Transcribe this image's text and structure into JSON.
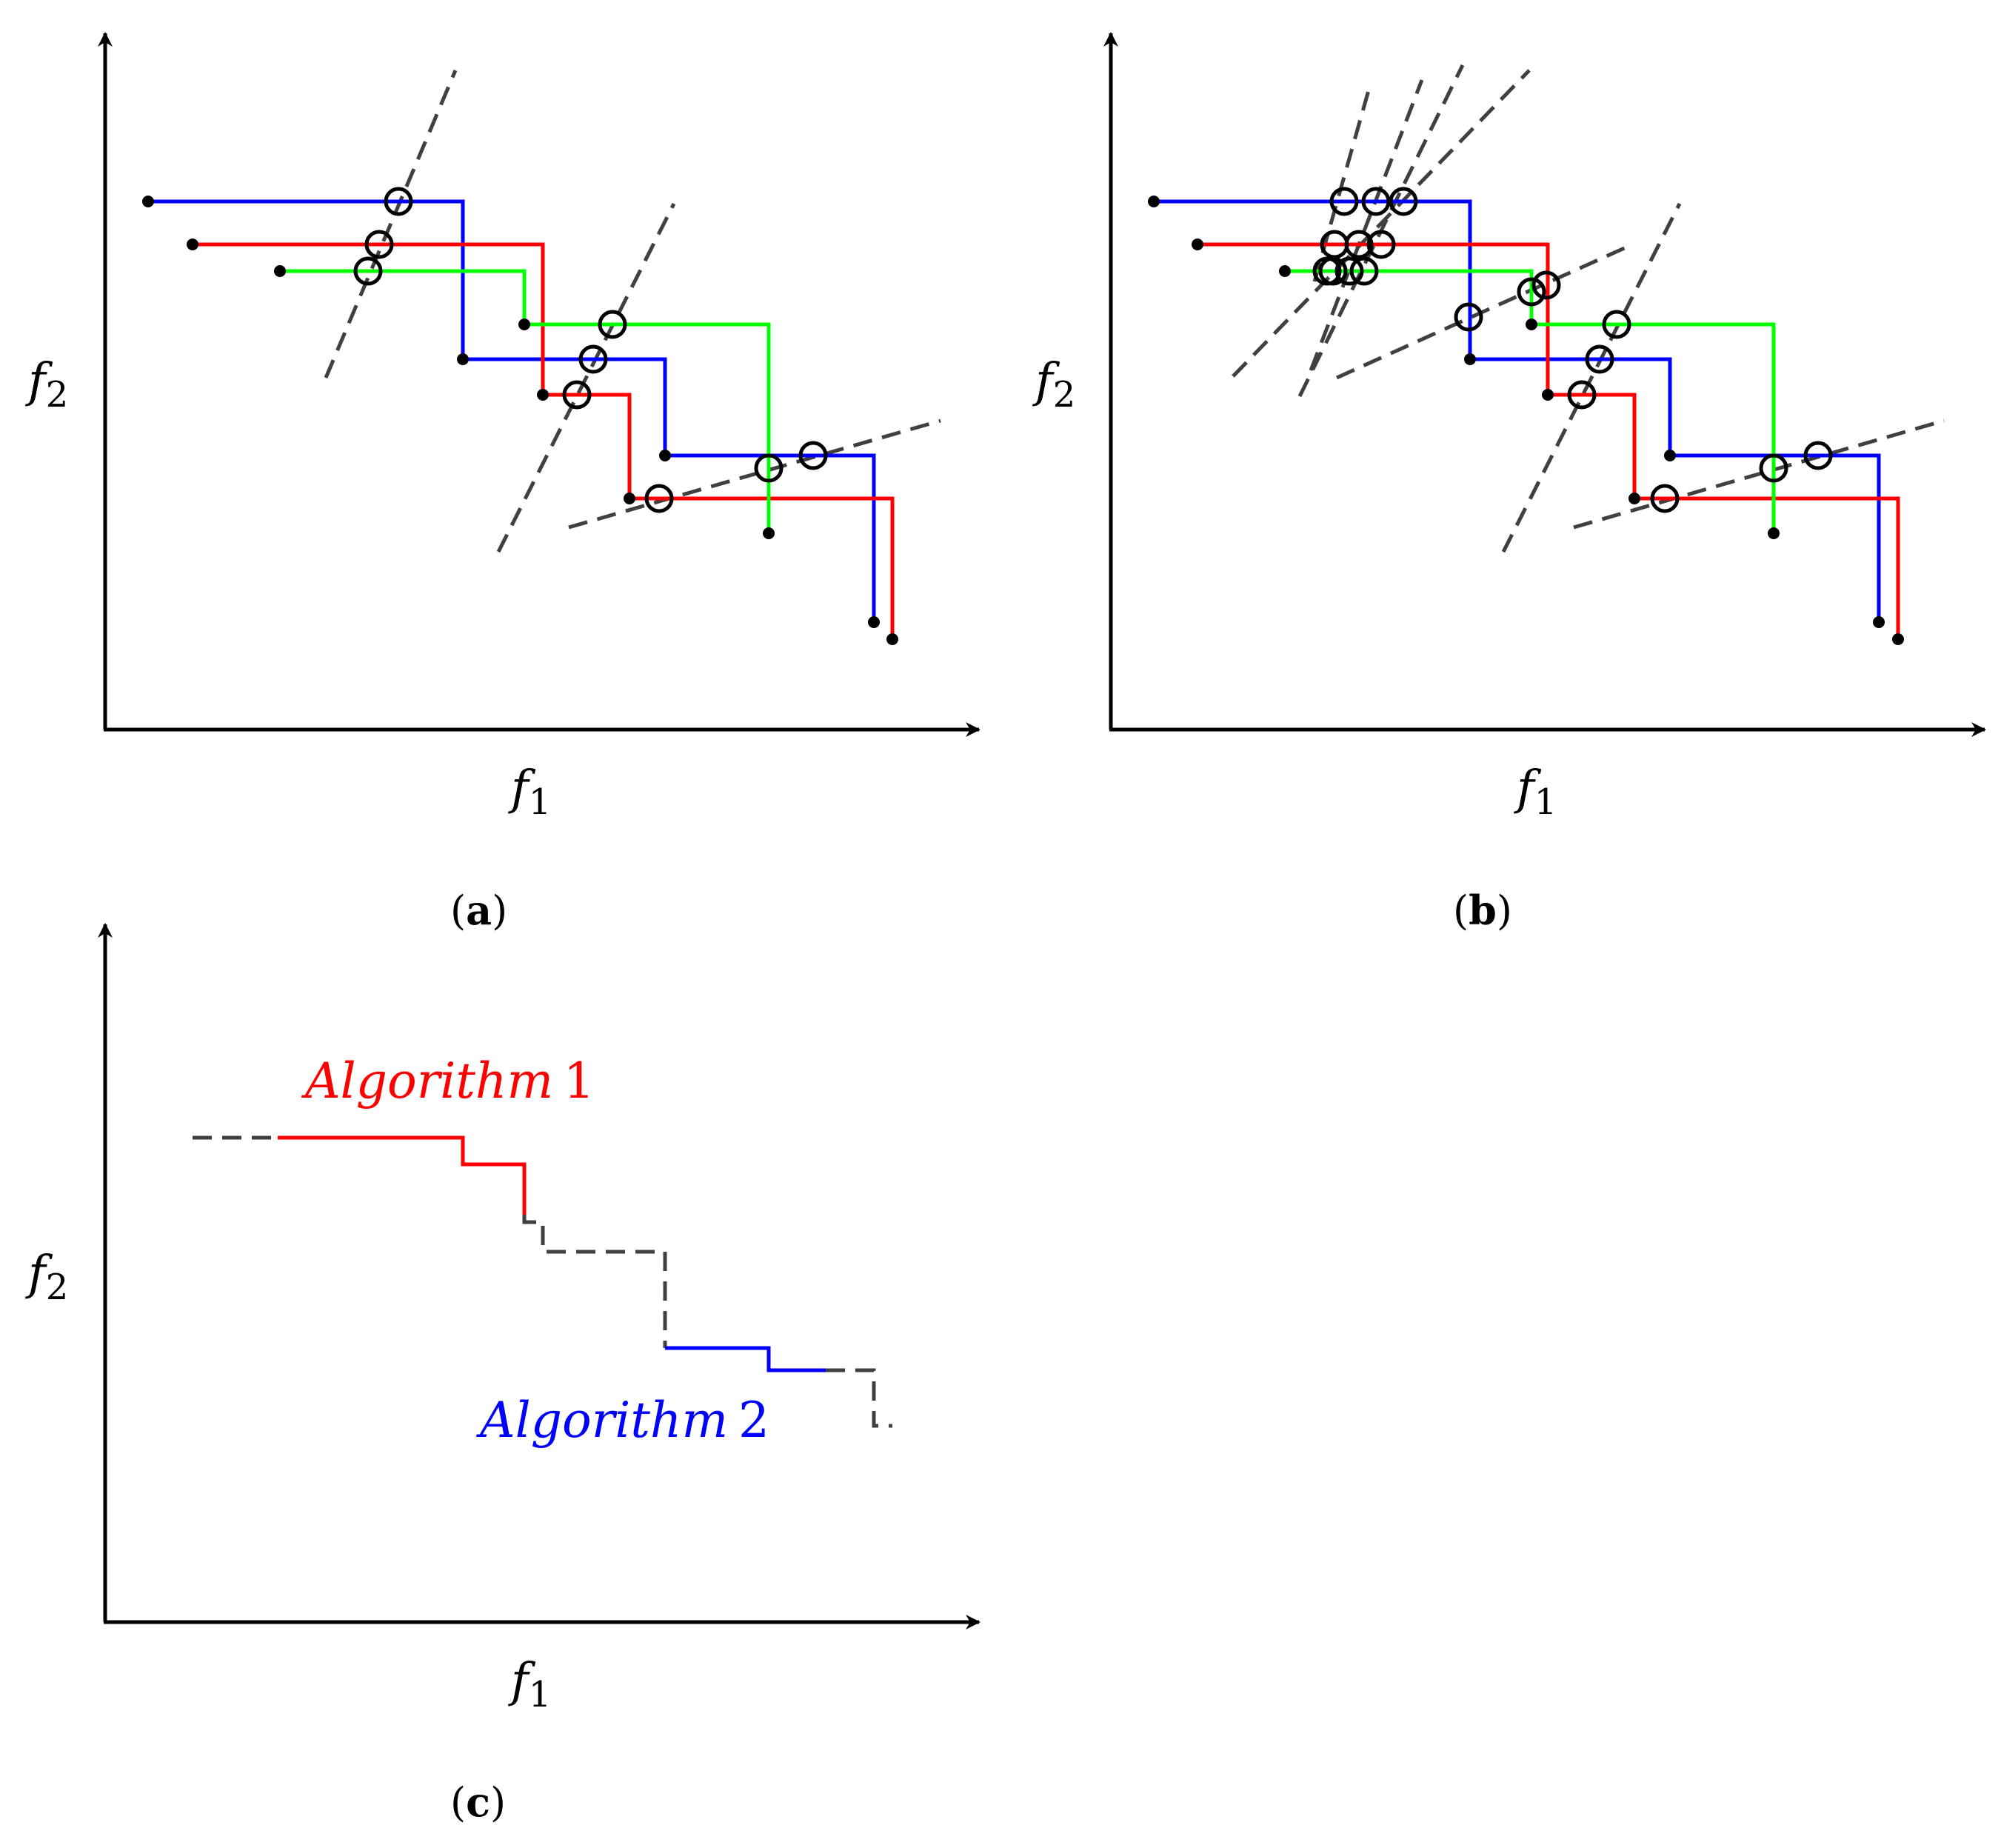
{
  "figure": {
    "colors": {
      "front_1": "#0000ff",
      "front_2": "#ff0000",
      "front_3": "#00ff00",
      "reference_line": "#404040",
      "axis": "#000000",
      "marker": "#000000"
    },
    "axis_labels": {
      "x_letter": "f",
      "x_sub": "1",
      "y_letter": "f",
      "y_sub": "2"
    },
    "panels": [
      {
        "id": "a",
        "open": "(",
        "letter": "a",
        "close": ")"
      },
      {
        "id": "b",
        "open": "(",
        "letter": "b",
        "close": ")"
      },
      {
        "id": "c",
        "open": "(",
        "letter": "c",
        "close": ")"
      }
    ],
    "annotations": {
      "algorithm_1": {
        "name": "Algorithm",
        "number": "1",
        "color": "#ff0000"
      },
      "algorithm_2": {
        "name": "Algorithm",
        "number": "2",
        "color": "#0000ff"
      }
    }
  }
}
